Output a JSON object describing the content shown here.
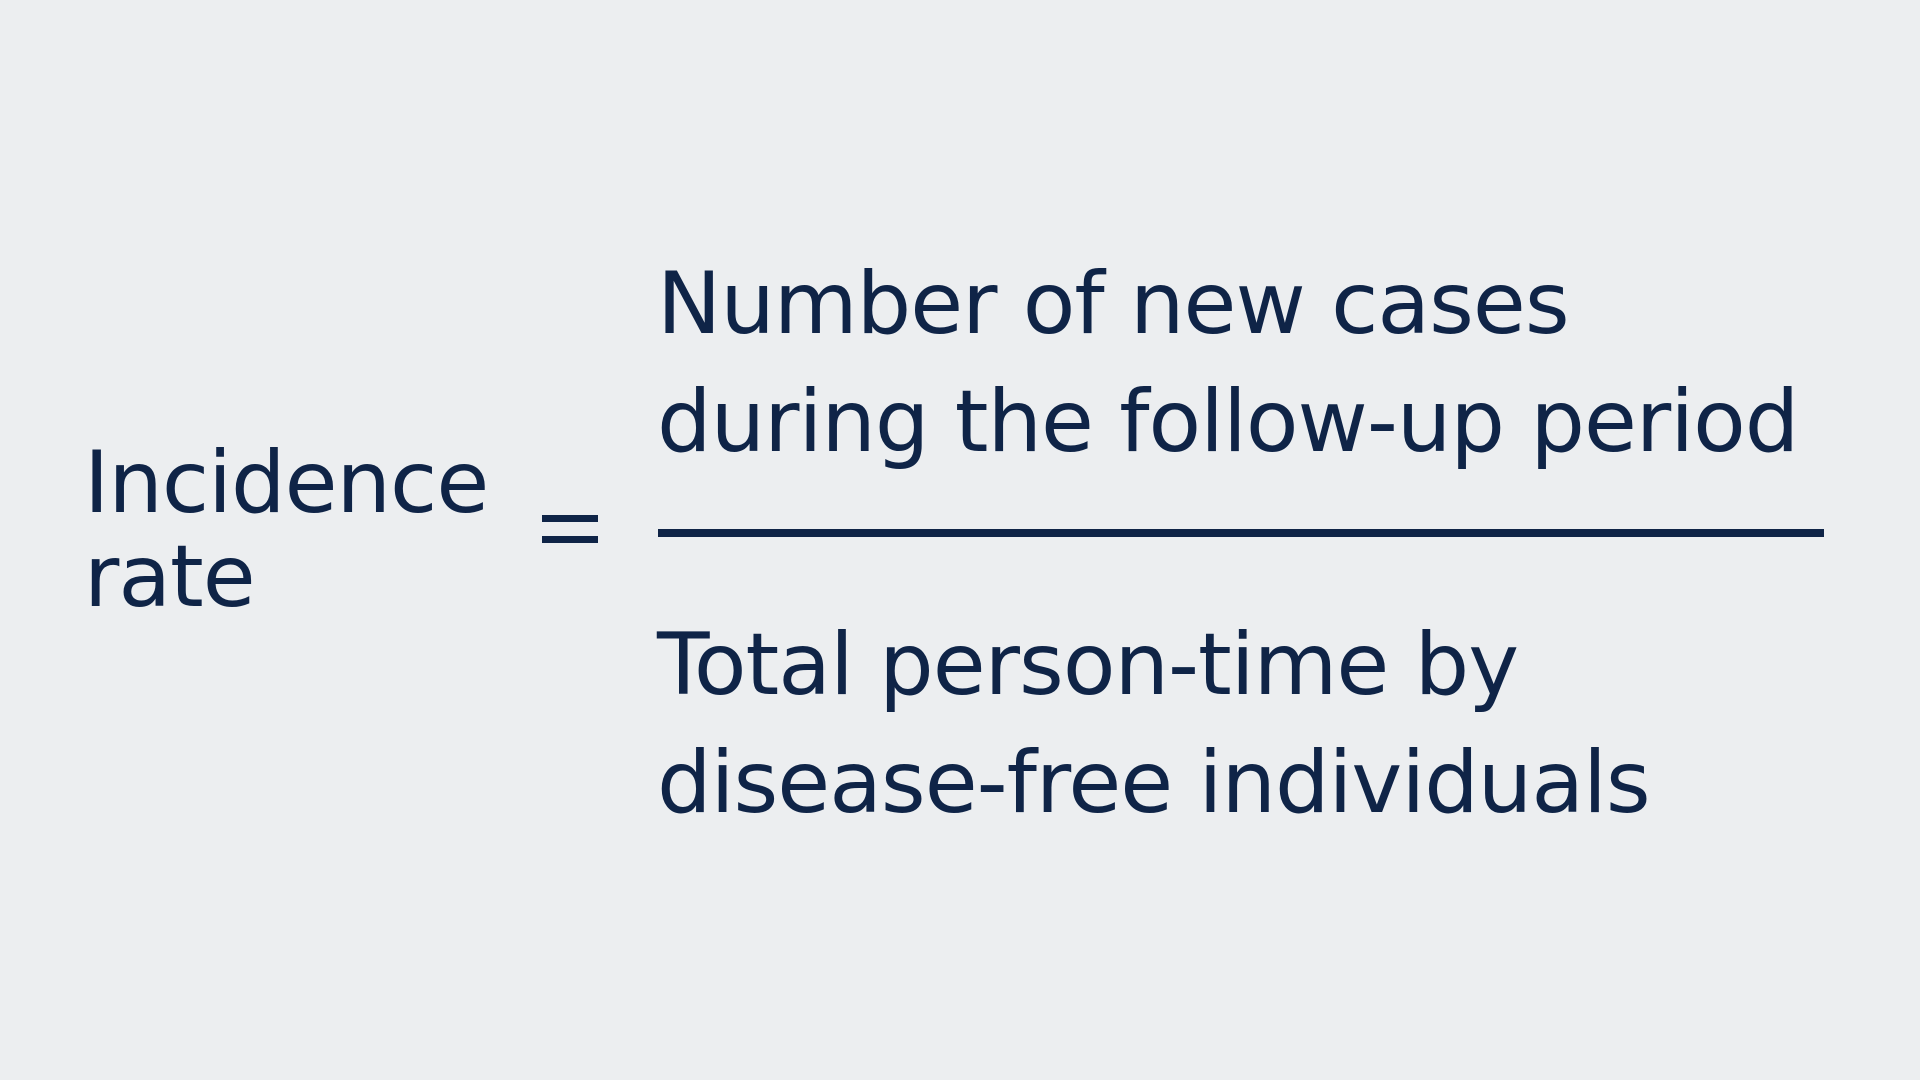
{
  "formula": {
    "term": {
      "line1": "Incidence",
      "line2": "rate"
    },
    "operator": "=",
    "numerator": {
      "line1": "Number of new cases",
      "line2": "during the follow-up period"
    },
    "denominator": {
      "line1": "Total person-time by",
      "line2": "disease-free individuals"
    }
  },
  "colors": {
    "background": "#ECEEF0",
    "text": "#0F2447"
  }
}
